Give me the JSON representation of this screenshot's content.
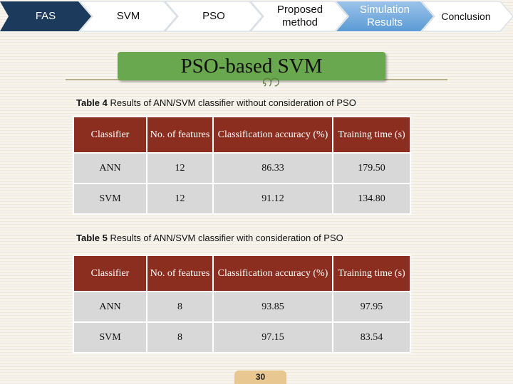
{
  "nav": {
    "items": [
      {
        "label": "FAS"
      },
      {
        "label": "SVM"
      },
      {
        "label": "PSO"
      },
      {
        "label": "Proposed method"
      },
      {
        "label": "Simulation Results"
      },
      {
        "label": "Conclusion"
      }
    ],
    "colors": {
      "dark": "#1b3a5c",
      "light": "#ffffff",
      "accent": "#5b9bd5"
    }
  },
  "slide": {
    "title": "PSO-based SVM",
    "page_number": "30"
  },
  "table4": {
    "caption_label": "Table 4",
    "caption_text": " Results of ANN/SVM classifier without consideration of PSO",
    "headers": [
      "Classifier",
      "No. of features",
      "Classification accuracy (%)",
      "Training time (s)"
    ],
    "rows": [
      [
        "ANN",
        "12",
        "86.33",
        "179.50"
      ],
      [
        "SVM",
        "12",
        "91.12",
        "134.80"
      ]
    ]
  },
  "table5": {
    "caption_label": "Table 5",
    "caption_text": " Results of ANN/SVM classifier with consideration of PSO",
    "headers": [
      "Classifier",
      "No. of features",
      "Classification accuracy (%)",
      "Training time (s)"
    ],
    "rows": [
      [
        "ANN",
        "8",
        "93.85",
        "97.95"
      ],
      [
        "SVM",
        "8",
        "97.15",
        "83.54"
      ]
    ]
  },
  "colors": {
    "header_cell": "#8b2e1f",
    "body_cell": "#d8d8d8",
    "title_banner": "#6aa84f",
    "page_badge": "#e8c890"
  }
}
